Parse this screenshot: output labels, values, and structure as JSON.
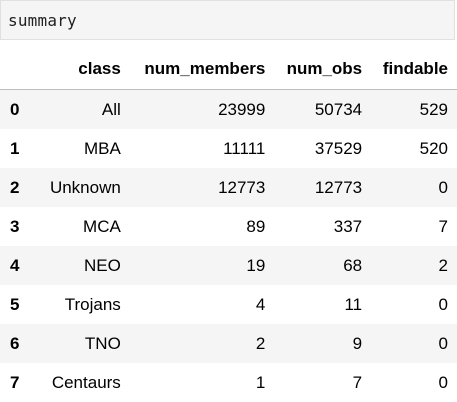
{
  "cell": {
    "code": "summary"
  },
  "table": {
    "columns": [
      "",
      "class",
      "num_members",
      "num_obs",
      "findable"
    ],
    "rows": [
      {
        "index": "0",
        "class": "All",
        "num_members": "23999",
        "num_obs": "50734",
        "findable": "529"
      },
      {
        "index": "1",
        "class": "MBA",
        "num_members": "11111",
        "num_obs": "37529",
        "findable": "520"
      },
      {
        "index": "2",
        "class": "Unknown",
        "num_members": "12773",
        "num_obs": "12773",
        "findable": "0"
      },
      {
        "index": "3",
        "class": "MCA",
        "num_members": "89",
        "num_obs": "337",
        "findable": "7"
      },
      {
        "index": "4",
        "class": "NEO",
        "num_members": "19",
        "num_obs": "68",
        "findable": "2"
      },
      {
        "index": "5",
        "class": "Trojans",
        "num_members": "4",
        "num_obs": "11",
        "findable": "0"
      },
      {
        "index": "6",
        "class": "TNO",
        "num_members": "2",
        "num_obs": "9",
        "findable": "0"
      },
      {
        "index": "7",
        "class": "Centaurs",
        "num_members": "1",
        "num_obs": "7",
        "findable": "0"
      }
    ]
  }
}
